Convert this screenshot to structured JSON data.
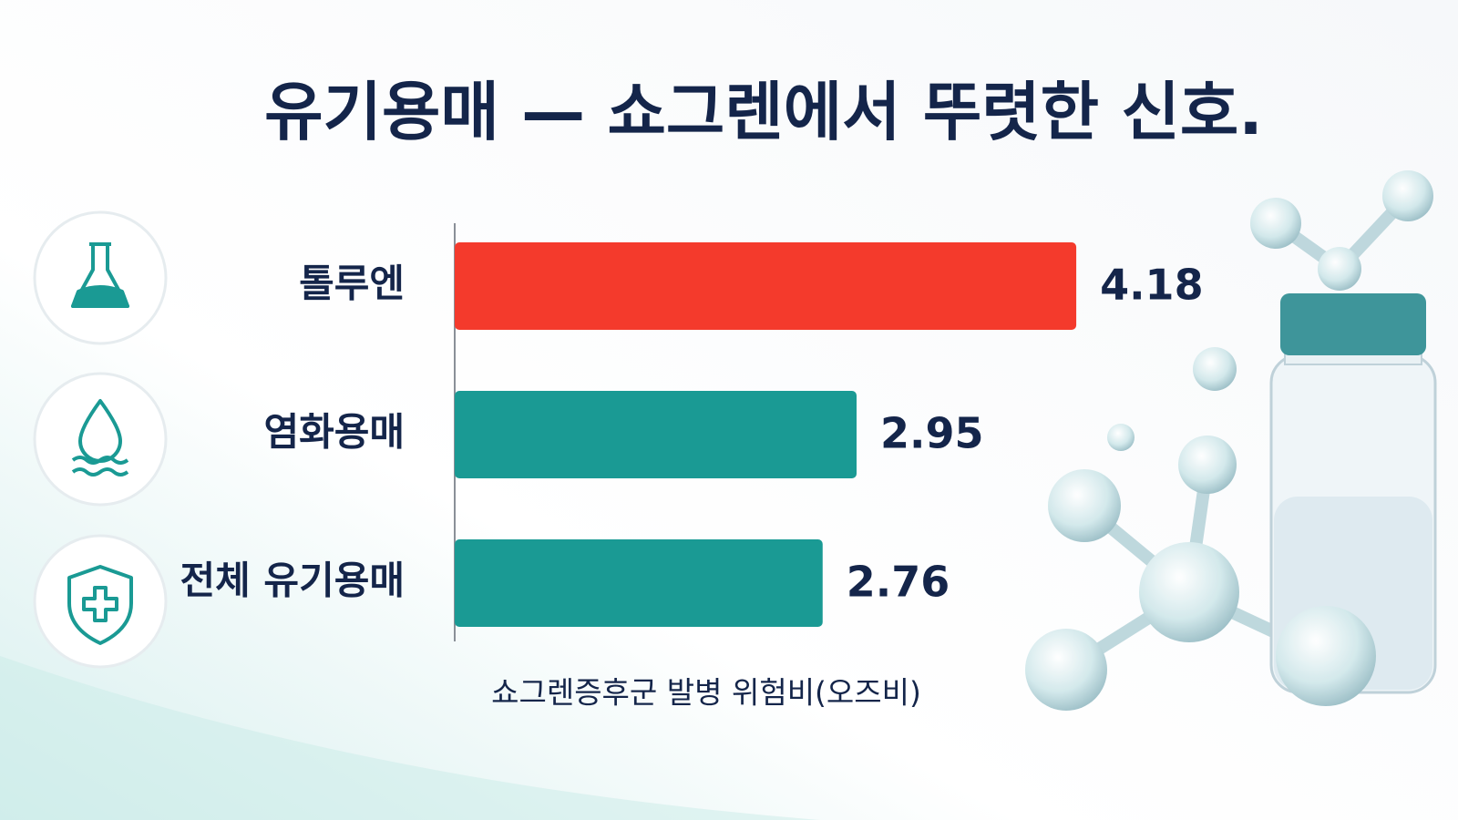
{
  "chart_data": {
    "type": "barh",
    "title": "유기용매 — 쇼그렌에서 뚜렷한 신호.",
    "categories": [
      "톨루엔",
      "염화용매",
      "전체 유기용매"
    ],
    "values": [
      4.18,
      2.95,
      2.76
    ],
    "colors": [
      "#f43a2c",
      "#1a9a94",
      "#1a9a94"
    ],
    "x_label": "쇼그렌증후군 발병 위험비(오즈비)",
    "xlim": [
      0.7,
      4.7
    ]
  }
}
